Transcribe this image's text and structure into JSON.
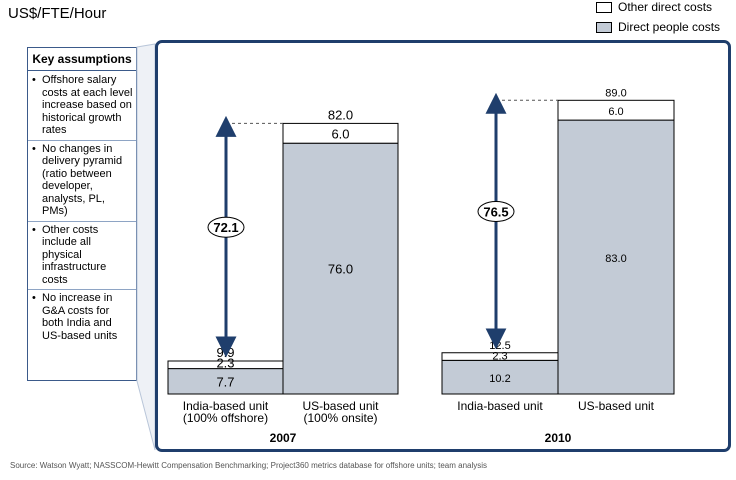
{
  "unit_label": "US$/FTE/Hour",
  "legend": [
    {
      "label": "Other direct costs",
      "color": "#ffffff"
    },
    {
      "label": "Direct people costs",
      "color": "#c3cbd6"
    }
  ],
  "assumptions": {
    "title": "Key assumptions",
    "items": [
      "Offshore salary costs at each level increase based on historical growth rates",
      "No changes in delivery pyramid (ratio between developer, analysts, PL, PMs)",
      "Other costs include all physical infrastructure costs",
      "No increase in G&A costs for both India and US-based units"
    ]
  },
  "chart_data": [
    {
      "type": "bar",
      "stacked": true,
      "title": "2007",
      "categories": [
        "India-based unit\n(100% offshore)",
        "US-based unit\n(100% onsite)"
      ],
      "series": [
        {
          "name": "Direct people costs",
          "values": [
            7.7,
            76.0
          ]
        },
        {
          "name": "Other direct costs",
          "values": [
            2.3,
            6.0
          ]
        }
      ],
      "totals": [
        9.9,
        82.0
      ],
      "data_labels": {
        "bottom": [
          "7.7",
          "76.0"
        ],
        "top": [
          "2.3",
          "6.0"
        ],
        "totals": [
          "9.9",
          "82.0"
        ]
      },
      "difference_label": "72.1",
      "ylim": [
        0,
        90
      ]
    },
    {
      "type": "bar",
      "stacked": true,
      "title": "2010",
      "categories": [
        "India-based unit",
        "US-based unit"
      ],
      "series": [
        {
          "name": "Direct people costs",
          "values": [
            10.2,
            83.0
          ]
        },
        {
          "name": "Other direct costs",
          "values": [
            2.3,
            6.0
          ]
        }
      ],
      "totals": [
        12.5,
        89.0
      ],
      "data_labels": {
        "bottom": [
          "10.2",
          "83.0"
        ],
        "top": [
          "2.3",
          "6.0"
        ],
        "totals": [
          "12.5",
          "89.0"
        ]
      },
      "difference_label": "76.5",
      "ylim": [
        0,
        90
      ]
    }
  ],
  "source": "Source:  Watson Wyatt; NASSCOM-Hewitt Compensation Benchmarking; Project360 metrics database for offshore units; team analysis"
}
